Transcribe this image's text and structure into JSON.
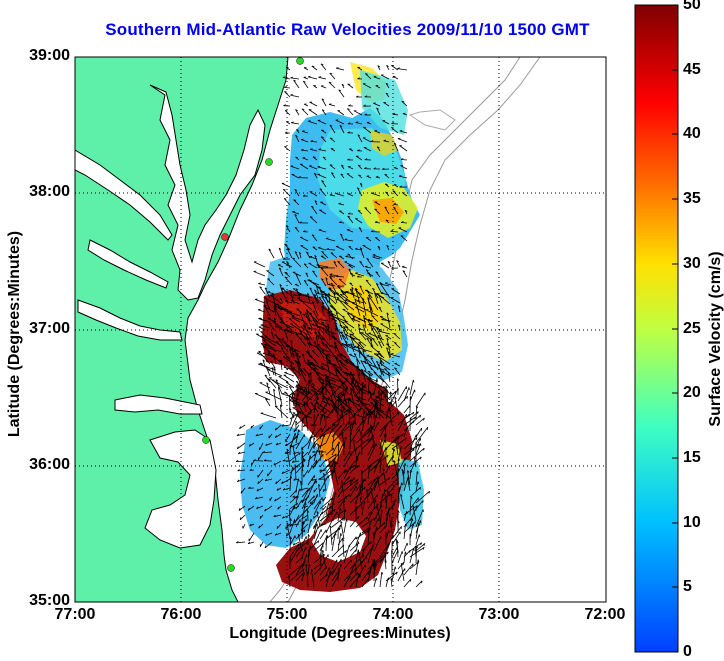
{
  "title": "Southern Mid-Atlantic Raw Velocities 2009/11/10 1500 GMT",
  "x_axis": {
    "label": "Longitude (Degrees:Minutes)",
    "ticks": [
      "77:00",
      "76:00",
      "75:00",
      "74:00",
      "73:00",
      "72:00"
    ]
  },
  "y_axis": {
    "label": "Latitude (Degrees:Minutes)",
    "ticks": [
      "39:00",
      "38:00",
      "37:00",
      "36:00",
      "35:00"
    ]
  },
  "colorbar": {
    "label": "Surface Velocity (cm/s)",
    "ticks": [
      "50",
      "45",
      "40",
      "35",
      "30",
      "25",
      "20",
      "15",
      "10",
      "5",
      "0"
    ],
    "min": 0,
    "max": 50
  },
  "colors": {
    "land": "#5ef0a8",
    "water": "#ffffff",
    "title": "#0000ee",
    "station": "#22dd22",
    "station_alert": "#ee3333"
  },
  "map_region": {
    "lon_range": [
      -77,
      -72
    ],
    "lat_range": [
      35,
      39
    ]
  }
}
